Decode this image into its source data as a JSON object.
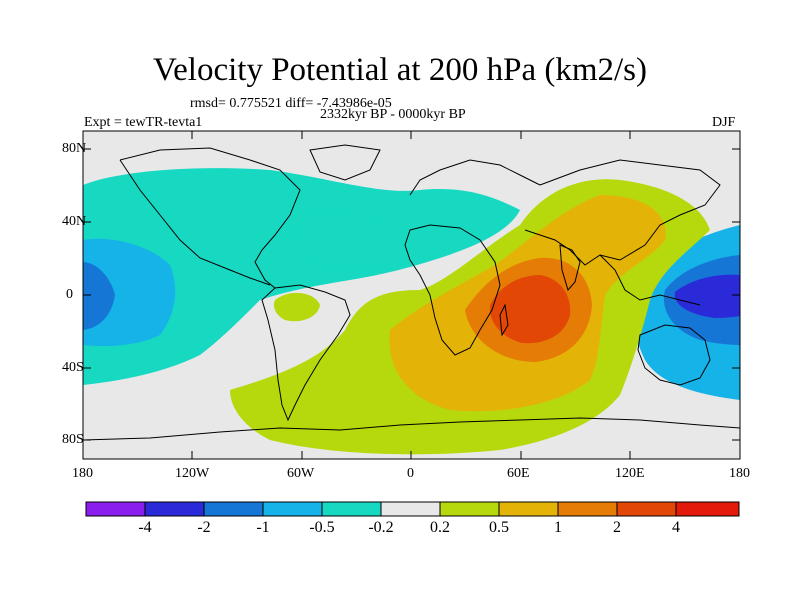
{
  "title": "Velocity Potential at 200 hPa (km2/s)",
  "stats": "rmsd= 0.775521 diff= -7.43986e-05",
  "period": "2332kyr BP - 0000kyr BP",
  "experiment": "Expt = tewTR-tevta1",
  "season": "DJF",
  "lat_ticks": [
    "80N",
    "40N",
    "0",
    "40S",
    "80S"
  ],
  "lon_ticks": [
    "180",
    "120W",
    "60W",
    "0",
    "60E",
    "120E",
    "180"
  ],
  "colorbar": {
    "labels": [
      "-4",
      "-2",
      "-1",
      "-0.5",
      "-0.2",
      "0.2",
      "0.5",
      "1",
      "2",
      "4"
    ],
    "colors": [
      "#8a1eef",
      "#2a2ad8",
      "#1676d6",
      "#15b3e8",
      "#17d9c2",
      "#e8e8e8",
      "#b5d90d",
      "#e3b407",
      "#e57c06",
      "#e34706",
      "#e31a0a"
    ]
  },
  "map_colors": {
    "ocean": "#e8e8e8",
    "neg_weak": "#17d9c2",
    "neg_mid": "#15b3e8",
    "neg_strong": "#1676d6",
    "neg_max": "#2a2ad8",
    "pos_weak": "#b5d90d",
    "pos_mid": "#e3b407",
    "pos_strong": "#e57c06",
    "pos_max": "#e34706"
  }
}
